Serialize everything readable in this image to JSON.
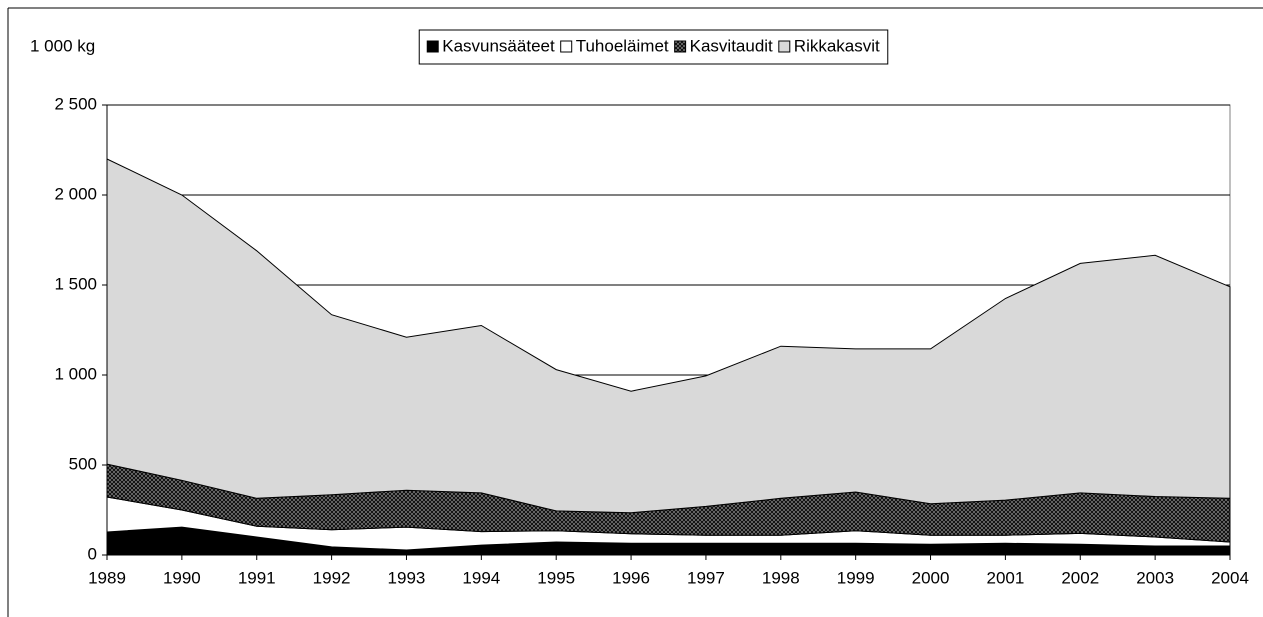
{
  "chart_data": {
    "type": "stacked_area",
    "y_axis_label": "1 000 kg",
    "categories": [
      "1989",
      "1990",
      "1991",
      "1992",
      "1993",
      "1994",
      "1995",
      "1996",
      "1997",
      "1998",
      "1999",
      "2000",
      "2001",
      "2002",
      "2003",
      "2004"
    ],
    "series": [
      {
        "name": "Kasvunsääteet",
        "color": "#000000",
        "values": [
          128,
          155,
          100,
          45,
          28,
          55,
          72,
          65,
          65,
          65,
          65,
          60,
          65,
          60,
          50,
          50
        ]
      },
      {
        "name": "Tuhoeläimet",
        "color": "#ffffff",
        "values": [
          194,
          95,
          60,
          95,
          127,
          75,
          63,
          53,
          45,
          45,
          70,
          50,
          45,
          60,
          50,
          22
        ]
      },
      {
        "name": "Kasvitaudit",
        "color": "#777777",
        "values": [
          183,
          165,
          155,
          195,
          205,
          215,
          110,
          117,
          160,
          205,
          215,
          175,
          195,
          225,
          225,
          243
        ]
      },
      {
        "name": "Rikkakasvit",
        "color": "#d9d9d9",
        "values": [
          1695,
          1585,
          1375,
          1000,
          850,
          930,
          785,
          675,
          725,
          845,
          795,
          860,
          1120,
          1275,
          1340,
          1175
        ]
      }
    ],
    "ylim": [
      0,
      2500
    ],
    "yticks": [
      0,
      500,
      {
        "value": 1000,
        "label": "1 000"
      },
      {
        "value": 1500,
        "label": "1 500"
      },
      {
        "value": 2000,
        "label": "2 000"
      },
      {
        "value": 2500,
        "label": "2 500"
      }
    ],
    "grid": true,
    "legend": "top"
  }
}
